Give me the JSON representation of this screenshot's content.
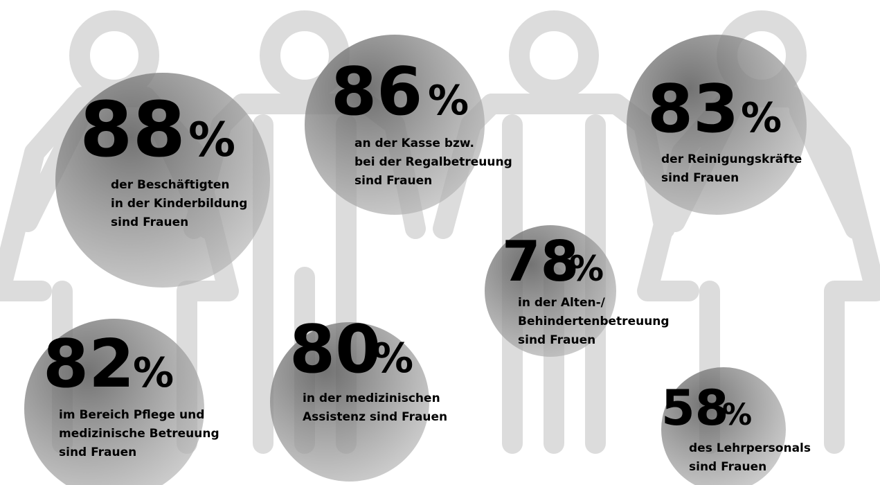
{
  "items": [
    {
      "value": 88,
      "unit": "%",
      "lines": [
        "der Beschäftigten",
        "in der Kinderbildung",
        "sind Frauen"
      ]
    },
    {
      "value": 86,
      "unit": "%",
      "lines": [
        "an der Kasse bzw.",
        "bei der Regalbetreuung",
        "sind Frauen"
      ]
    },
    {
      "value": 83,
      "unit": "%",
      "lines": [
        "der Reinigungskräfte",
        "sind Frauen"
      ]
    },
    {
      "value": 78,
      "unit": "%",
      "lines": [
        "in der Alten-/",
        "Behindertenbetreuung",
        "sind Frauen"
      ]
    },
    {
      "value": 82,
      "unit": "%",
      "lines": [
        "im Bereich Pflege und",
        "medizinische Betreuung",
        "sind Frauen"
      ]
    },
    {
      "value": 80,
      "unit": "%",
      "lines": [
        "in der medizinischen",
        "Assistenz sind Frauen"
      ]
    },
    {
      "value": 58,
      "unit": "%",
      "lines": [
        "des Lehrpersonals",
        "sind Frauen"
      ]
    }
  ]
}
